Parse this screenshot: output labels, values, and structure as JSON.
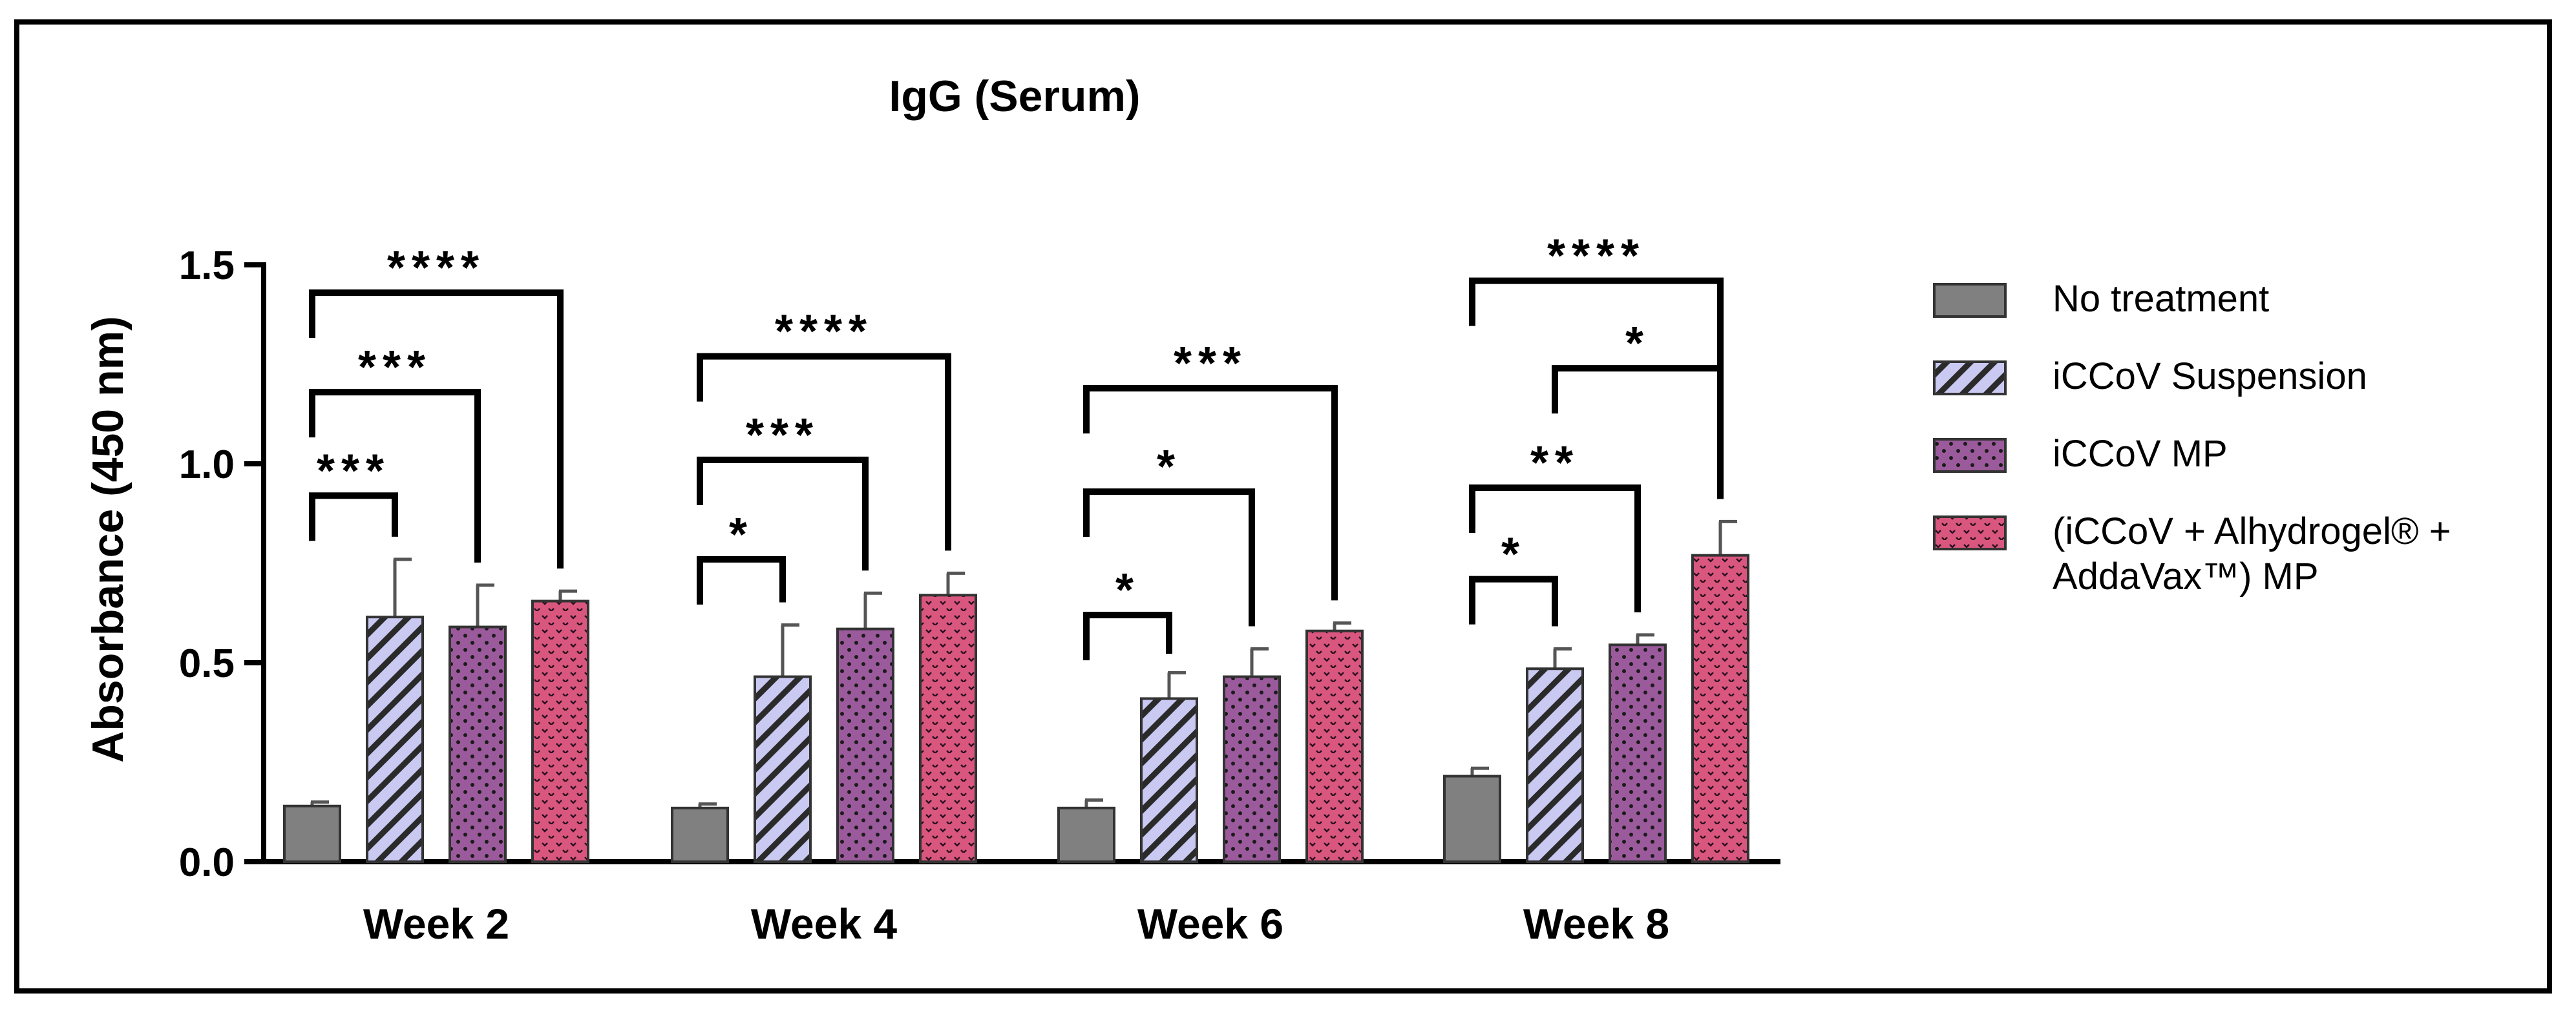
{
  "chart_data": {
    "type": "bar",
    "title": "IgG (Serum)",
    "xlabel": "",
    "ylabel": "Absorbance (450 nm)",
    "ylim": [
      0,
      1.5
    ],
    "yticks": [
      "0.0",
      "0.5",
      "1.0",
      "1.5"
    ],
    "categories": [
      "Week 2",
      "Week 4",
      "Week 6",
      "Week 8"
    ],
    "series": [
      {
        "name": "No treatment",
        "color": "#808080",
        "pattern": "solid",
        "values": [
          0.14,
          0.135,
          0.135,
          0.215
        ],
        "errors": [
          0.01,
          0.01,
          0.02,
          0.02
        ]
      },
      {
        "name": "iCCoV Suspension",
        "color": "#c9c9f2",
        "pattern": "stripes",
        "values": [
          0.615,
          0.465,
          0.41,
          0.485
        ],
        "errors": [
          0.145,
          0.13,
          0.065,
          0.05
        ]
      },
      {
        "name": "iCCoV MP",
        "color": "#9b5a9b",
        "pattern": "dots",
        "values": [
          0.59,
          0.585,
          0.465,
          0.545
        ],
        "errors": [
          0.105,
          0.09,
          0.07,
          0.025
        ]
      },
      {
        "name": "(iCCoV + Alhydrogel® + AddaVax™) MP",
        "legend_lines": [
          "(iCCoV + Alhydrogel® +",
          "AddaVax™) MP"
        ],
        "color": "#d9577e",
        "pattern": "chevrons",
        "values": [
          0.655,
          0.67,
          0.58,
          0.77
        ],
        "errors": [
          0.025,
          0.055,
          0.02,
          0.085
        ]
      }
    ],
    "significance": [
      {
        "group": 0,
        "from": 0,
        "to": 1,
        "y": 0.92,
        "label": "***"
      },
      {
        "group": 0,
        "from": 0,
        "to": 2,
        "y": 1.18,
        "label": "***"
      },
      {
        "group": 0,
        "from": 0,
        "to": 3,
        "y": 1.43,
        "label": "****"
      },
      {
        "group": 1,
        "from": 0,
        "to": 1,
        "y": 0.76,
        "label": "*"
      },
      {
        "group": 1,
        "from": 0,
        "to": 2,
        "y": 1.01,
        "label": "***"
      },
      {
        "group": 1,
        "from": 0,
        "to": 3,
        "y": 1.27,
        "label": "****"
      },
      {
        "group": 2,
        "from": 0,
        "to": 1,
        "y": 0.62,
        "label": "*"
      },
      {
        "group": 2,
        "from": 0,
        "to": 2,
        "y": 0.93,
        "label": "*"
      },
      {
        "group": 2,
        "from": 0,
        "to": 3,
        "y": 1.19,
        "label": "***"
      },
      {
        "group": 3,
        "from": 0,
        "to": 1,
        "y": 0.71,
        "label": "*"
      },
      {
        "group": 3,
        "from": 0,
        "to": 2,
        "y": 0.94,
        "label": "**"
      },
      {
        "group": 3,
        "from": 1,
        "to": 3,
        "y": 1.24,
        "label": "*"
      },
      {
        "group": 3,
        "from": 0,
        "to": 3,
        "y": 1.46,
        "label": "****"
      }
    ],
    "legend_position": "right"
  }
}
